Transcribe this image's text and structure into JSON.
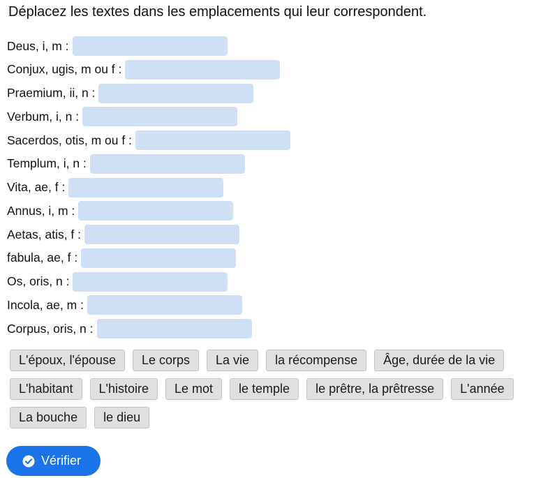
{
  "instruction": "Déplacez les textes dans les emplacements qui leur correspondent.",
  "rows": [
    {
      "label": "Deus, i, m :"
    },
    {
      "label": "Conjux, ugis, m ou f :"
    },
    {
      "label": "Praemium, ii, n :"
    },
    {
      "label": "Verbum, i, n :"
    },
    {
      "label": "Sacerdos, otis, m ou f :"
    },
    {
      "label": "Templum, i, n :"
    },
    {
      "label": "Vita, ae, f :"
    },
    {
      "label": "Annus, i, m :"
    },
    {
      "label": "Aetas, atis, f :"
    },
    {
      "label": "fabula, ae, f :"
    },
    {
      "label": "Os, oris, n :"
    },
    {
      "label": "Incola, ae, m :"
    },
    {
      "label": "Corpus, oris, n :"
    }
  ],
  "word_bank": [
    [
      "L'époux, l'épouse",
      "Le corps",
      "La vie",
      "la récompense",
      "Âge, durée de la vie"
    ],
    [
      "L'habitant",
      "L'histoire",
      "Le mot",
      "le temple",
      "le prêtre, la prêtresse",
      "L'année"
    ],
    [
      "La bouche",
      "le dieu"
    ]
  ],
  "verify_button": {
    "label": "Vérifier",
    "icon": "check-circle-icon",
    "color": "#1a73e8"
  },
  "colors": {
    "drop_zone": "#cfe0f5",
    "chip": "#e0e0e0"
  }
}
